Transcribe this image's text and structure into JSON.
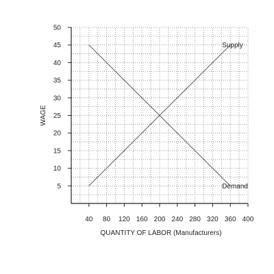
{
  "chart_data": {
    "type": "line",
    "xlabel": "QUANTITY OF LABOR (Manufacturers)",
    "ylabel": "WAGE",
    "xlim": [
      0,
      400
    ],
    "ylim": [
      0,
      50
    ],
    "x_ticks": [
      40,
      80,
      120,
      160,
      200,
      240,
      280,
      320,
      360,
      400
    ],
    "y_ticks": [
      5,
      10,
      15,
      20,
      25,
      30,
      35,
      40,
      45,
      50
    ],
    "x_grid_step": 20,
    "y_grid_step": 2.5,
    "grid": true,
    "series": [
      {
        "name": "Supply",
        "x": [
          40,
          360
        ],
        "y": [
          5,
          45
        ]
      },
      {
        "name": "Demand",
        "x": [
          40,
          360
        ],
        "y": [
          45,
          5
        ]
      }
    ],
    "colors": {
      "line": "#555555",
      "grid": "#7a7a7a",
      "axis": "#222222",
      "text": "#222222"
    }
  }
}
